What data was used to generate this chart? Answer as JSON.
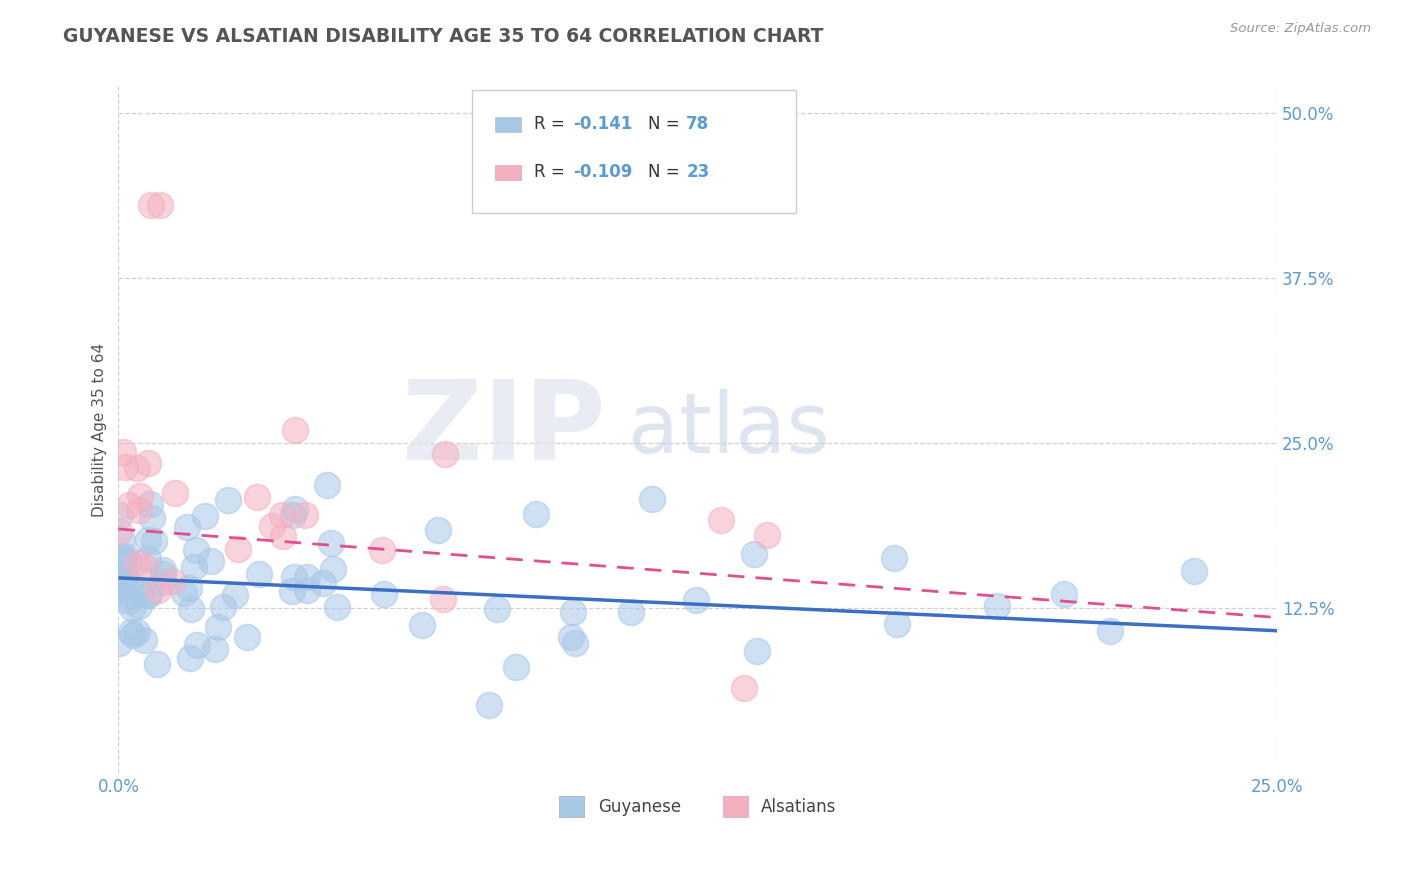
{
  "title": "GUYANESE VS ALSATIAN DISABILITY AGE 35 TO 64 CORRELATION CHART",
  "source_text": "Source: ZipAtlas.com",
  "ylabel": "Disability Age 35 to 64",
  "xlim": [
    0.0,
    0.25
  ],
  "ylim": [
    0.0,
    0.52
  ],
  "ytick_values": [
    0.125,
    0.25,
    0.375,
    0.5
  ],
  "xtick_values": [
    0.0,
    0.25
  ],
  "guyanese_color": "#a8c8e8",
  "alsatian_color": "#f4b0c0",
  "guyanese_line_color": "#3a6fc4",
  "alsatian_line_color": "#e05090",
  "R_guyanese": -0.141,
  "N_guyanese": 78,
  "R_alsatian": -0.109,
  "N_alsatian": 23,
  "watermark_zip": "ZIP",
  "watermark_atlas": "atlas",
  "background_color": "#ffffff",
  "tick_label_color": "#5b9bd5",
  "grid_color": "#cccccc",
  "title_color": "#555555",
  "ylabel_color": "#555555",
  "guy_trend_start_y": 0.148,
  "guy_trend_end_y": 0.108,
  "als_trend_start_y": 0.185,
  "als_trend_end_y": 0.118
}
